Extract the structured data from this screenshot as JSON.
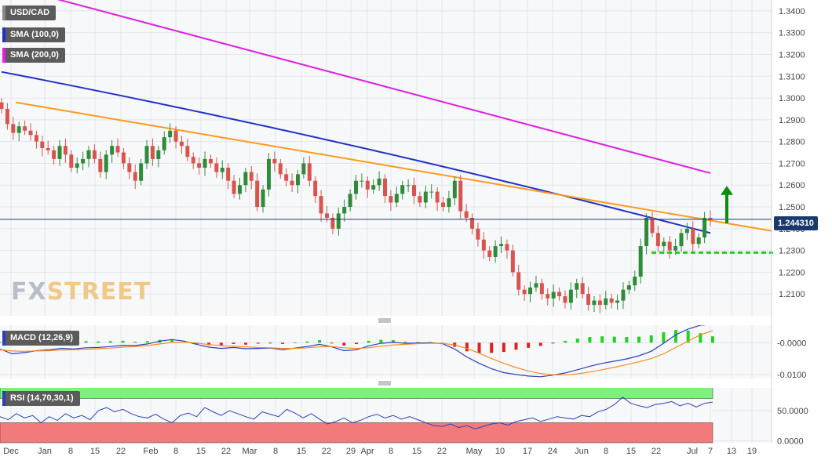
{
  "legends": {
    "pair": "USD/CAD",
    "sma100": "SMA (100,0)",
    "sma200": "SMA (200,0)",
    "macd": "MACD (12,26,9)",
    "rsi": "RSI (14,70,30,1)"
  },
  "brand": {
    "part1": "FX",
    "part2": "STREET"
  },
  "current_price": "1.244310",
  "colors": {
    "up": "#2e8b3a",
    "down": "#d9534f",
    "sma100": "#2032c8",
    "sma200": "#e020e0",
    "trendline": "#ff9a1a",
    "macd_line": "#2a3fc0",
    "signal_line": "#ff8a1a",
    "hist": "#1fd41f"
  },
  "annotations": [
    "up-arrow",
    "support-dashed-line",
    "descending-trendline",
    "last-price-line"
  ],
  "chart_data": [
    {
      "type": "candlestick",
      "title": "USD/CAD",
      "ylim": [
        1.2,
        1.345
      ],
      "yticks": [
        "1.3400",
        "1.3300",
        "1.3200",
        "1.3100",
        "1.3000",
        "1.2900",
        "1.2800",
        "1.2700",
        "1.2600",
        "1.2500",
        "1.2400",
        "1.2300",
        "1.2200",
        "1.2100"
      ],
      "xticks": [
        "Dec",
        "Jan",
        "8",
        "15",
        "22",
        "Feb",
        "8",
        "15",
        "22",
        "Mar",
        "8",
        "15",
        "22",
        "29",
        "Apr",
        "8",
        "15",
        "22",
        "May",
        "10",
        "17",
        "24",
        "Jun",
        "8",
        "15",
        "22",
        "Jul",
        "7",
        "13",
        "19"
      ],
      "close_series": [
        1.295,
        1.288,
        1.284,
        1.287,
        1.285,
        1.283,
        1.28,
        1.277,
        1.276,
        1.272,
        1.278,
        1.274,
        1.268,
        1.27,
        1.272,
        1.276,
        1.272,
        1.266,
        1.274,
        1.278,
        1.275,
        1.27,
        1.266,
        1.262,
        1.27,
        1.278,
        1.272,
        1.276,
        1.282,
        1.285,
        1.28,
        1.278,
        1.273,
        1.27,
        1.268,
        1.272,
        1.27,
        1.266,
        1.268,
        1.262,
        1.256,
        1.26,
        1.266,
        1.262,
        1.25,
        1.258,
        1.272,
        1.27,
        1.265,
        1.262,
        1.26,
        1.265,
        1.27,
        1.262,
        1.255,
        1.247,
        1.245,
        1.24,
        1.247,
        1.25,
        1.256,
        1.262,
        1.262,
        1.258,
        1.26,
        1.263,
        1.255,
        1.252,
        1.256,
        1.26,
        1.26,
        1.255,
        1.252,
        1.257,
        1.257,
        1.252,
        1.25,
        1.254,
        1.262,
        1.248,
        1.245,
        1.24,
        1.235,
        1.23,
        1.227,
        1.232,
        1.233,
        1.23,
        1.22,
        1.212,
        1.21,
        1.213,
        1.215,
        1.21,
        1.208,
        1.211,
        1.209,
        1.206,
        1.212,
        1.215,
        1.21,
        1.205,
        1.207,
        1.205,
        1.208,
        1.206,
        1.207,
        1.212,
        1.214,
        1.218,
        1.232,
        1.245,
        1.238,
        1.232,
        1.234,
        1.23,
        1.232,
        1.238,
        1.24,
        1.233,
        1.236,
        1.245,
        1.2443
      ],
      "sma100_start": 1.312,
      "sma100_end": 1.238,
      "sma200_start": 1.355,
      "sma200_end": 1.2655,
      "trendline": {
        "x": [
          "Dec 7",
          "Jul 20"
        ],
        "y": [
          1.298,
          1.239
        ]
      },
      "support": 1.229,
      "last_price": 1.24431
    },
    {
      "type": "line",
      "title": "MACD (12,26,9)",
      "ylim": [
        -0.0115,
        0.0055
      ],
      "yticks": [
        "-0.0000",
        "-0.0100"
      ],
      "series": [
        {
          "name": "MACD",
          "values": [
            -0.002,
            -0.0035,
            -0.0031,
            -0.0025,
            -0.0022,
            -0.0018,
            -0.002,
            -0.0016,
            -0.0015,
            -0.0012,
            -0.0008,
            -0.0009,
            -0.0004,
            0.0005,
            0.001,
            0.0005,
            -0.0005,
            -0.0014,
            -0.0018,
            -0.0015,
            -0.0019,
            -0.0018,
            -0.0017,
            -0.0022,
            -0.0017,
            -0.0012,
            -0.0005,
            -0.0013,
            -0.0025,
            -0.0022,
            -0.001,
            -0.0002,
            0.0001,
            -0.0002,
            -0.0001,
            0.0,
            -0.0003,
            -0.002,
            -0.0045,
            -0.0065,
            -0.0082,
            -0.0094,
            -0.01,
            -0.0105,
            -0.0107,
            -0.0102,
            -0.0095,
            -0.0085,
            -0.0074,
            -0.0065,
            -0.0058,
            -0.0051,
            -0.0041,
            -0.0027,
            -0.0002,
            0.0025,
            0.0043,
            0.0055,
            0.0058
          ]
        },
        {
          "name": "Signal",
          "values": [
            -0.0022,
            -0.0026,
            -0.0027,
            -0.0026,
            -0.0025,
            -0.0023,
            -0.0022,
            -0.0021,
            -0.0019,
            -0.0017,
            -0.0014,
            -0.0012,
            -0.0009,
            -0.0004,
            0.0001,
            0.0002,
            -0.0001,
            -0.0006,
            -0.0009,
            -0.0011,
            -0.0013,
            -0.0015,
            -0.0016,
            -0.0018,
            -0.0018,
            -0.0016,
            -0.0013,
            -0.0012,
            -0.0016,
            -0.0018,
            -0.0016,
            -0.0011,
            -0.0007,
            -0.0005,
            -0.0003,
            -0.0002,
            -0.0002,
            -0.0007,
            -0.0018,
            -0.0033,
            -0.005,
            -0.0065,
            -0.0078,
            -0.0089,
            -0.0097,
            -0.0101,
            -0.0101,
            -0.0098,
            -0.0092,
            -0.0085,
            -0.0077,
            -0.0069,
            -0.006,
            -0.005,
            -0.0035,
            -0.0015,
            0.0005,
            0.0025,
            0.0038
          ]
        }
      ]
    },
    {
      "type": "line",
      "title": "RSI (14,70,30,1)",
      "ylim": [
        -3,
        90
      ],
      "yticks": [
        "50.0000",
        "0.0000"
      ],
      "bands": {
        "overbought": 70,
        "oversold": 30
      },
      "values": [
        40,
        35,
        45,
        38,
        42,
        30,
        40,
        34,
        45,
        38,
        42,
        35,
        50,
        55,
        48,
        52,
        45,
        40,
        38,
        44,
        36,
        30,
        42,
        46,
        40,
        55,
        48,
        42,
        50,
        45,
        40,
        36,
        48,
        44,
        40,
        52,
        46,
        38,
        45,
        36,
        28,
        32,
        38,
        30,
        34,
        40,
        44,
        38,
        42,
        36,
        40,
        35,
        30,
        25,
        24,
        28,
        22,
        25,
        20,
        24,
        28,
        30,
        26,
        32,
        35,
        38,
        32,
        36,
        40,
        38,
        36,
        42,
        40,
        48,
        52,
        60,
        72,
        62,
        58,
        55,
        60,
        62,
        65,
        58,
        62,
        56,
        62,
        64
      ]
    }
  ]
}
